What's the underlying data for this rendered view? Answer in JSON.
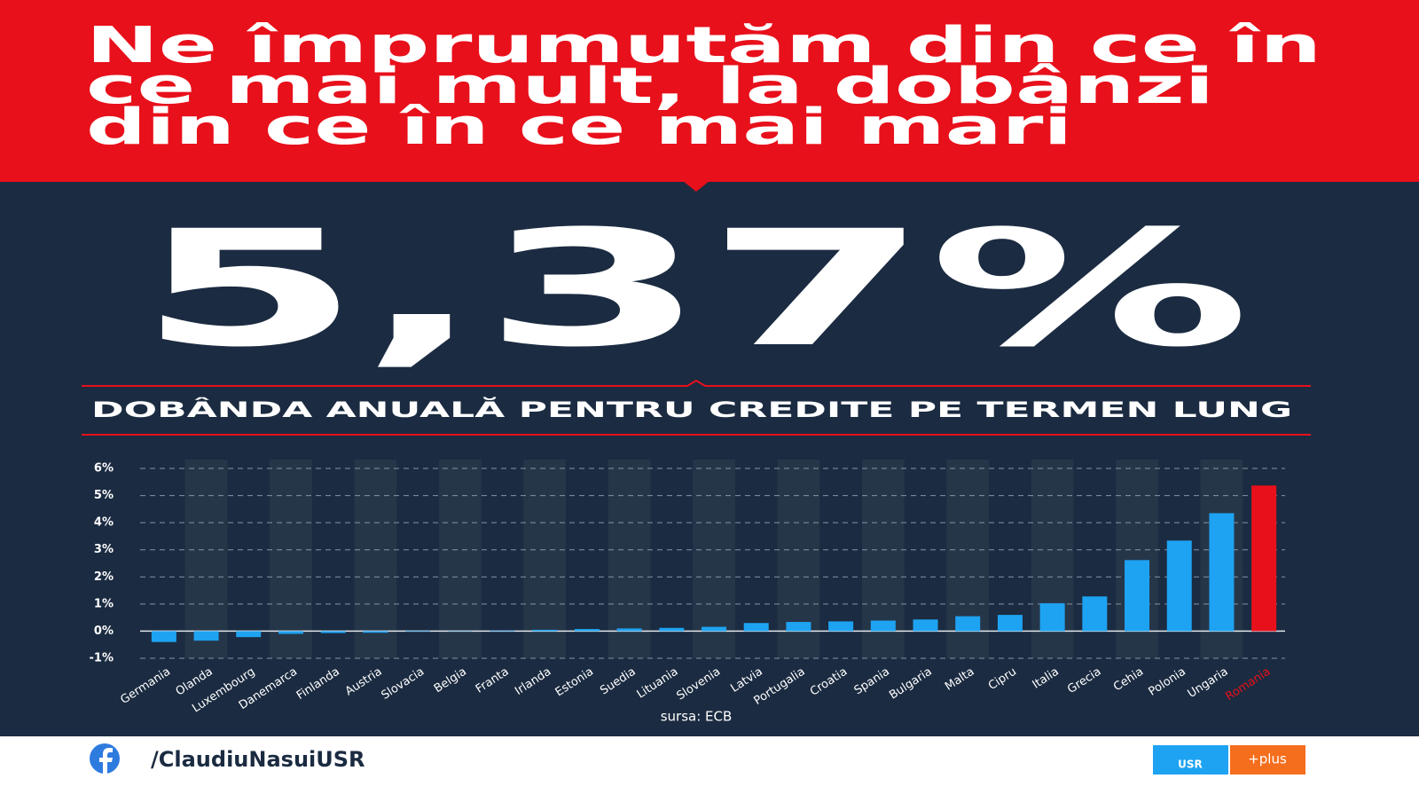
{
  "header": {
    "title_lines": [
      "Ne împrumutăm din ce în",
      "ce mai mult, la dobânzi",
      "din ce în ce mai mari"
    ]
  },
  "highlight": "5,37%",
  "chart_data": {
    "type": "bar",
    "title": "DOBÂNDA ANUALĂ PENTRU CREDITE PE TERMEN LUNG",
    "categories": [
      "Germania",
      "Olanda",
      "Luxembourg",
      "Danemarca",
      "Finlanda",
      "Austria",
      "Slovacia",
      "Belgia",
      "Franta",
      "Irlanda",
      "Estonia",
      "Suedia",
      "Lituania",
      "Slovenia",
      "Latvia",
      "Portugalia",
      "Croatia",
      "Spania",
      "Bulgaria",
      "Malta",
      "Cipru",
      "Italia",
      "Grecia",
      "Cehia",
      "Polonia",
      "Ungaria",
      "Romania"
    ],
    "values": [
      -0.4,
      -0.35,
      -0.22,
      -0.1,
      -0.07,
      -0.06,
      -0.02,
      -0.01,
      0.02,
      0.05,
      0.08,
      0.1,
      0.12,
      0.16,
      0.3,
      0.34,
      0.36,
      0.39,
      0.43,
      0.55,
      0.6,
      1.03,
      1.28,
      2.62,
      3.34,
      4.35,
      5.37
    ],
    "colors": [
      "#1ea3f2",
      "#1ea3f2",
      "#1ea3f2",
      "#1ea3f2",
      "#1ea3f2",
      "#1ea3f2",
      "#1ea3f2",
      "#1ea3f2",
      "#1ea3f2",
      "#1ea3f2",
      "#1ea3f2",
      "#1ea3f2",
      "#1ea3f2",
      "#1ea3f2",
      "#1ea3f2",
      "#1ea3f2",
      "#1ea3f2",
      "#1ea3f2",
      "#1ea3f2",
      "#1ea3f2",
      "#1ea3f2",
      "#1ea3f2",
      "#1ea3f2",
      "#1ea3f2",
      "#1ea3f2",
      "#1ea3f2",
      "#e8101b"
    ],
    "ylim": [
      -1,
      6
    ],
    "yticks": [
      {
        "value": -1,
        "label": "-1%"
      },
      {
        "value": 0,
        "label": "0%"
      },
      {
        "value": 1,
        "label": "1%"
      },
      {
        "value": 2,
        "label": "2%"
      },
      {
        "value": 3,
        "label": "3%"
      },
      {
        "value": 4,
        "label": "4%"
      },
      {
        "value": 5,
        "label": "5%"
      },
      {
        "value": 6,
        "label": "6%"
      }
    ],
    "grid": true,
    "source": "sursa: ECB"
  },
  "footer": {
    "handle": "/ClaudiuNasuiUSR",
    "logo_left": "USR",
    "logo_right": "+plus"
  }
}
